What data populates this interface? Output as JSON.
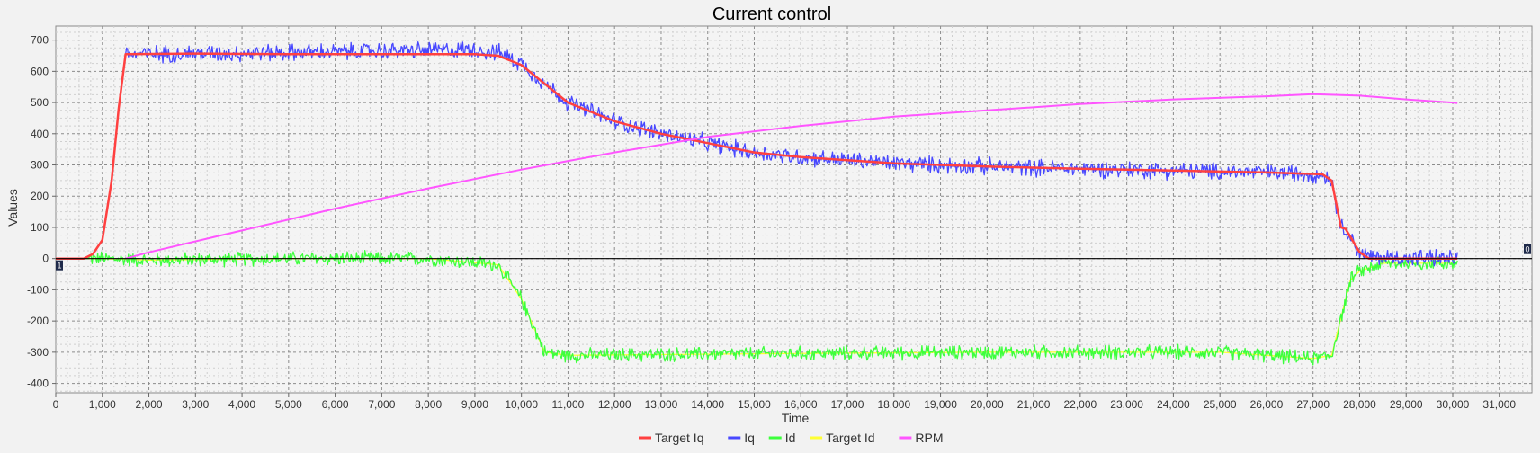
{
  "chart_data": {
    "type": "line",
    "title": "Current control",
    "xlabel": "Time",
    "ylabel": "Values",
    "xlim": [
      0,
      31700
    ],
    "ylim": [
      -430,
      745
    ],
    "xticks": [
      0,
      1000,
      2000,
      3000,
      4000,
      5000,
      6000,
      7000,
      8000,
      9000,
      10000,
      11000,
      12000,
      13000,
      14000,
      15000,
      16000,
      17000,
      18000,
      19000,
      20000,
      21000,
      22000,
      23000,
      24000,
      25000,
      26000,
      27000,
      28000,
      29000,
      30000,
      31000
    ],
    "xtick_labels": [
      "0",
      "1,000",
      "2,000",
      "3,000",
      "4,000",
      "5,000",
      "6,000",
      "7,000",
      "8,000",
      "9,000",
      "10,000",
      "11,000",
      "12,000",
      "13,000",
      "14,000",
      "15,000",
      "16,000",
      "17,000",
      "18,000",
      "19,000",
      "20,000",
      "21,000",
      "22,000",
      "23,000",
      "24,000",
      "25,000",
      "26,000",
      "27,000",
      "28,000",
      "29,000",
      "30,000",
      "31,000"
    ],
    "yticks": [
      -400,
      -300,
      -200,
      -100,
      0,
      100,
      200,
      300,
      400,
      500,
      600,
      700
    ],
    "ytick_labels": [
      "-400",
      "-300",
      "-200",
      "-100",
      "0",
      "100",
      "200",
      "300",
      "400",
      "500",
      "600",
      "700"
    ],
    "grid": true,
    "legend_position": "bottom-center",
    "marker_labels": {
      "left": "1",
      "right": "0"
    },
    "series": [
      {
        "name": "Target Iq",
        "color": "#ff4040",
        "noise": 0,
        "x": [
          0,
          600,
          800,
          1000,
          1200,
          1350,
          1500,
          3000,
          5000,
          7000,
          9000,
          9500,
          10000,
          10500,
          11000,
          11500,
          12000,
          13000,
          14000,
          15000,
          16000,
          17000,
          18000,
          20000,
          22000,
          24000,
          26000,
          27200,
          27400,
          27600,
          27700,
          28000,
          28200,
          30000,
          30100
        ],
        "values": [
          0,
          0,
          15,
          60,
          250,
          480,
          655,
          657,
          655,
          655,
          655,
          650,
          620,
          560,
          500,
          470,
          440,
          400,
          370,
          340,
          325,
          315,
          305,
          295,
          288,
          282,
          276,
          270,
          250,
          100,
          95,
          20,
          0,
          0,
          0
        ]
      },
      {
        "name": "Iq",
        "color": "#4848ff",
        "noise": 22,
        "x": [
          0,
          600,
          800,
          1000,
          1200,
          1350,
          1500,
          3000,
          5000,
          7000,
          9000,
          9500,
          10000,
          10500,
          11000,
          11500,
          12000,
          13000,
          14000,
          15000,
          16000,
          17000,
          18000,
          20000,
          22000,
          24000,
          26000,
          27200,
          27400,
          27600,
          27700,
          28000,
          28200,
          30000,
          30100
        ],
        "values": [
          0,
          0,
          15,
          60,
          250,
          480,
          655,
          657,
          660,
          665,
          670,
          660,
          625,
          560,
          500,
          470,
          440,
          400,
          370,
          340,
          325,
          315,
          305,
          295,
          288,
          282,
          276,
          270,
          250,
          100,
          95,
          20,
          5,
          0,
          0
        ]
      },
      {
        "name": "Id",
        "color": "#3cff3c",
        "noise": 18,
        "x": [
          0,
          1000,
          2000,
          5000,
          8000,
          9500,
          10000,
          10500,
          11000,
          15000,
          20000,
          25000,
          26000,
          27000,
          27400,
          27800,
          28000,
          28500,
          30000,
          30100
        ],
        "values": [
          0,
          0,
          -5,
          0,
          0,
          -20,
          -130,
          -300,
          -310,
          -305,
          -300,
          -300,
          -310,
          -320,
          -310,
          -70,
          -40,
          -15,
          -15,
          -10
        ]
      },
      {
        "name": "Target Id",
        "color": "#ffff33",
        "noise": 0,
        "x": [
          0,
          1000,
          2000,
          5000,
          8000,
          9500,
          10000,
          10500,
          11000,
          15000,
          20000,
          25000,
          26000,
          27000,
          27400,
          27800,
          28000,
          28500,
          30000,
          30100
        ],
        "values": [
          0,
          0,
          -5,
          0,
          0,
          -20,
          -130,
          -300,
          -310,
          -305,
          -300,
          -300,
          -310,
          -320,
          -310,
          -70,
          -40,
          -15,
          -15,
          -10
        ]
      },
      {
        "name": "RPM",
        "color": "#ff55ff",
        "noise": 0,
        "x": [
          1500,
          2000,
          4000,
          6000,
          8000,
          10000,
          12000,
          14000,
          16000,
          18000,
          20000,
          22000,
          24000,
          26000,
          27000,
          28000,
          29000,
          30000,
          30100
        ],
        "values": [
          0,
          20,
          90,
          160,
          225,
          285,
          340,
          390,
          425,
          455,
          475,
          495,
          510,
          520,
          527,
          522,
          510,
          500,
          498
        ]
      }
    ]
  }
}
